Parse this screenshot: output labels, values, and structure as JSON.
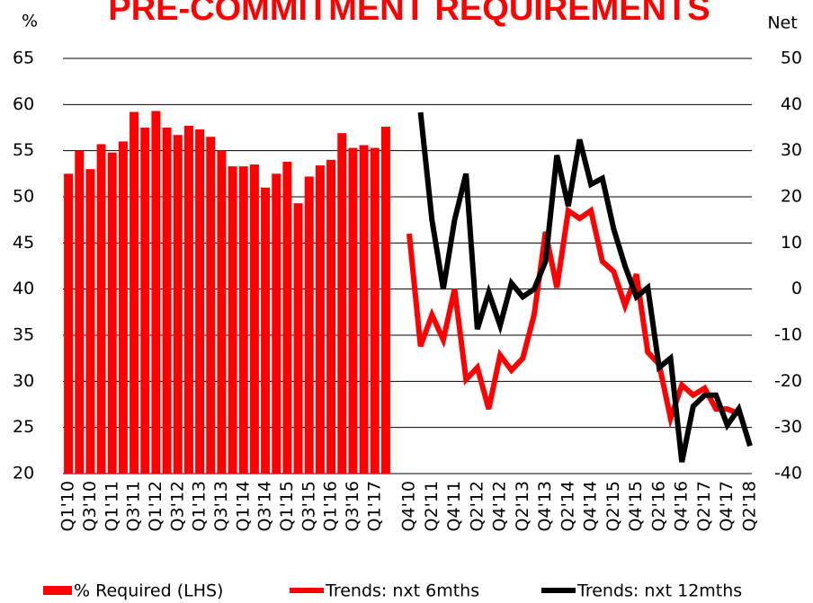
{
  "chart_data": [
    {
      "type": "bar",
      "title": "PRE-COMMITMENT REQUIREMENTS",
      "y_label": "%",
      "categories": [
        "Q1'10",
        null,
        "Q3'10",
        null,
        "Q1'11",
        null,
        "Q3'11",
        null,
        "Q1'12",
        null,
        "Q3'12",
        null,
        "Q1'13",
        null,
        "Q3'13",
        null,
        "Q1'14",
        null,
        "Q3'14",
        null,
        "Q1'15",
        null,
        "Q3'15",
        null,
        "Q1'16",
        null,
        "Q3'16",
        null,
        "Q1'17",
        null
      ],
      "series": [
        {
          "name": "% Required (LHS)",
          "color": "#ff0000",
          "values": [
            52.5,
            55,
            53,
            55.7,
            54.8,
            56,
            59.2,
            57.5,
            59.3,
            57.5,
            56.7,
            57.7,
            57.3,
            56.5,
            55,
            53.3,
            53.3,
            53.5,
            51,
            52.5,
            53.8,
            49.3,
            52.2,
            53.4,
            54,
            56.9,
            55.3,
            55.6,
            55.3,
            57.6
          ]
        }
      ],
      "ylim": [
        20,
        65
      ],
      "yticks": [
        20,
        25,
        30,
        35,
        40,
        45,
        50,
        55,
        60,
        65
      ],
      "grid": true
    },
    {
      "type": "line",
      "y_label": "Net",
      "categories": [
        "Q4'10",
        null,
        "Q2'11",
        null,
        "Q4'11",
        null,
        "Q2'12",
        null,
        "Q4'12",
        null,
        "Q2'13",
        null,
        "Q4'13",
        null,
        "Q2'14",
        null,
        "Q4'14",
        null,
        "Q2'15",
        null,
        "Q4'15",
        null,
        "Q2'16",
        null,
        "Q4'16",
        null,
        "Q2'17",
        null,
        "Q4'17",
        null,
        "Q2'18"
      ],
      "series": [
        {
          "name": "Trends: nxt 6mths",
          "color": "#ff0000",
          "values": [
            12,
            -12.4,
            -5.6,
            -11,
            0,
            -19.6,
            -17,
            -26,
            -14.3,
            -17.6,
            -15,
            -5.5,
            12.4,
            0.3,
            17,
            15.3,
            17,
            6,
            3.8,
            -3.6,
            3.2,
            -13.7,
            -16.3,
            -28,
            -20.8,
            -23,
            -21.5,
            -26,
            -26,
            -27,
            null
          ]
        },
        {
          "name": "Trends: nxt 12mths",
          "color": "#000000",
          "values": [
            null,
            38.3,
            15,
            0,
            15,
            25,
            -8.7,
            -0.7,
            -7.9,
            1.3,
            -1.7,
            0,
            6,
            29,
            18,
            32.4,
            22.7,
            24,
            13,
            5,
            -1.7,
            0.3,
            -17,
            -15,
            -37.5,
            -25.4,
            -23,
            -23,
            -29.5,
            -26,
            -34
          ]
        }
      ],
      "ylim": [
        -40,
        50
      ],
      "yticks": [
        -40,
        -30,
        -20,
        -10,
        0,
        10,
        20,
        30,
        40,
        50
      ]
    }
  ]
}
